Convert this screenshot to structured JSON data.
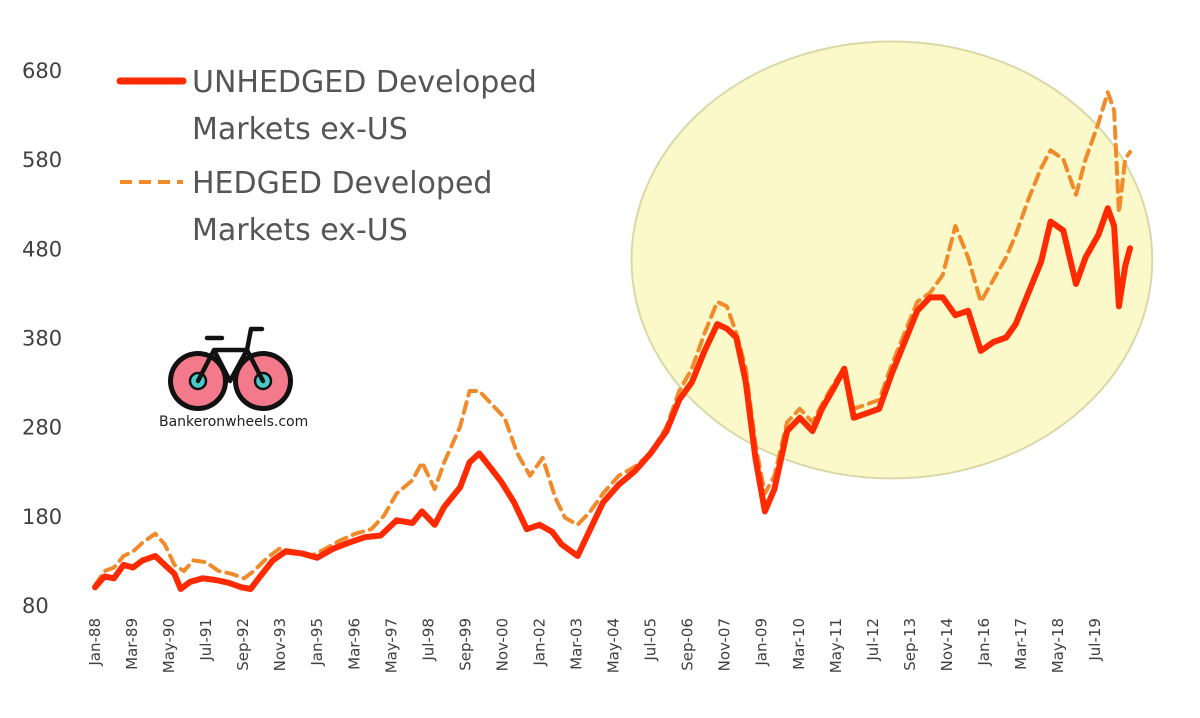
{
  "chart_data": {
    "type": "line",
    "ylim": [
      80,
      680
    ],
    "yticks": [
      80,
      180,
      280,
      380,
      480,
      580,
      680
    ],
    "xlim": [
      1988.0,
      2020.6
    ],
    "x_tick_labels": [
      "Jan-88",
      "Mar-89",
      "May-90",
      "Jul-91",
      "Sep-92",
      "Nov-93",
      "Jan-95",
      "Mar-96",
      "May-97",
      "Jul-98",
      "Sep-99",
      "Nov-00",
      "Jan-02",
      "Mar-03",
      "May-04",
      "Jul-05",
      "Sep-06",
      "Nov-07",
      "Jan-09",
      "Mar-10",
      "May-11",
      "Jul-12",
      "Sep-13",
      "Nov-14",
      "Jan-16",
      "Mar-17",
      "May-18",
      "Jul-19"
    ],
    "legend_position": "top-left",
    "grid": false,
    "series": [
      {
        "name": "UNHEDGED Developed Markets ex-US",
        "legend_lines": [
          "UNHEDGED Developed",
          "Markets ex-US"
        ],
        "color": "#ff2a00",
        "style": "solid",
        "points": [
          [
            1988.0,
            100
          ],
          [
            1988.3,
            112
          ],
          [
            1988.6,
            110
          ],
          [
            1988.9,
            125
          ],
          [
            1989.2,
            122
          ],
          [
            1989.5,
            130
          ],
          [
            1989.9,
            135
          ],
          [
            1990.2,
            125
          ],
          [
            1990.5,
            115
          ],
          [
            1990.7,
            98
          ],
          [
            1991.0,
            106
          ],
          [
            1991.4,
            110
          ],
          [
            1991.8,
            108
          ],
          [
            1992.2,
            105
          ],
          [
            1992.6,
            100
          ],
          [
            1992.9,
            98
          ],
          [
            1993.2,
            112
          ],
          [
            1993.6,
            130
          ],
          [
            1994.0,
            140
          ],
          [
            1994.5,
            138
          ],
          [
            1995.0,
            133
          ],
          [
            1995.5,
            143
          ],
          [
            1996.0,
            150
          ],
          [
            1996.5,
            156
          ],
          [
            1997.0,
            158
          ],
          [
            1997.5,
            175
          ],
          [
            1998.0,
            172
          ],
          [
            1998.3,
            185
          ],
          [
            1998.7,
            170
          ],
          [
            1999.0,
            190
          ],
          [
            1999.5,
            212
          ],
          [
            1999.8,
            240
          ],
          [
            2000.1,
            250
          ],
          [
            2000.5,
            232
          ],
          [
            2000.8,
            218
          ],
          [
            2001.2,
            195
          ],
          [
            2001.6,
            165
          ],
          [
            2002.0,
            170
          ],
          [
            2002.4,
            162
          ],
          [
            2002.7,
            148
          ],
          [
            2003.2,
            135
          ],
          [
            2003.6,
            165
          ],
          [
            2004.0,
            195
          ],
          [
            2004.5,
            215
          ],
          [
            2005.0,
            230
          ],
          [
            2005.5,
            250
          ],
          [
            2006.0,
            275
          ],
          [
            2006.4,
            310
          ],
          [
            2006.8,
            330
          ],
          [
            2007.2,
            365
          ],
          [
            2007.6,
            395
          ],
          [
            2007.9,
            390
          ],
          [
            2008.2,
            380
          ],
          [
            2008.5,
            330
          ],
          [
            2008.8,
            245
          ],
          [
            2009.1,
            185
          ],
          [
            2009.4,
            210
          ],
          [
            2009.8,
            275
          ],
          [
            2010.2,
            290
          ],
          [
            2010.6,
            275
          ],
          [
            2010.9,
            300
          ],
          [
            2011.3,
            325
          ],
          [
            2011.6,
            345
          ],
          [
            2011.9,
            290
          ],
          [
            2012.3,
            295
          ],
          [
            2012.7,
            300
          ],
          [
            2013.1,
            340
          ],
          [
            2013.5,
            375
          ],
          [
            2013.9,
            410
          ],
          [
            2014.3,
            425
          ],
          [
            2014.7,
            425
          ],
          [
            2015.1,
            405
          ],
          [
            2015.5,
            410
          ],
          [
            2015.9,
            365
          ],
          [
            2016.3,
            375
          ],
          [
            2016.7,
            380
          ],
          [
            2017.0,
            395
          ],
          [
            2017.4,
            430
          ],
          [
            2017.8,
            465
          ],
          [
            2018.1,
            510
          ],
          [
            2018.5,
            500
          ],
          [
            2018.9,
            440
          ],
          [
            2019.2,
            470
          ],
          [
            2019.6,
            495
          ],
          [
            2019.9,
            525
          ],
          [
            2020.1,
            505
          ],
          [
            2020.25,
            415
          ],
          [
            2020.45,
            460
          ],
          [
            2020.6,
            480
          ]
        ]
      },
      {
        "name": "HEDGED Developed Markets ex-US",
        "legend_lines": [
          "HEDGED Developed",
          "Markets ex-US"
        ],
        "color": "#f08a2a",
        "style": "dashed",
        "points": [
          [
            1988.0,
            102
          ],
          [
            1988.3,
            118
          ],
          [
            1988.6,
            122
          ],
          [
            1988.9,
            135
          ],
          [
            1989.2,
            140
          ],
          [
            1989.5,
            150
          ],
          [
            1989.9,
            160
          ],
          [
            1990.2,
            148
          ],
          [
            1990.5,
            125
          ],
          [
            1990.8,
            118
          ],
          [
            1991.1,
            130
          ],
          [
            1991.5,
            128
          ],
          [
            1991.9,
            118
          ],
          [
            1992.3,
            115
          ],
          [
            1992.7,
            110
          ],
          [
            1993.0,
            118
          ],
          [
            1993.4,
            132
          ],
          [
            1993.8,
            143
          ],
          [
            1994.3,
            140
          ],
          [
            1994.8,
            135
          ],
          [
            1995.2,
            142
          ],
          [
            1995.7,
            152
          ],
          [
            1996.2,
            160
          ],
          [
            1996.7,
            165
          ],
          [
            1997.1,
            180
          ],
          [
            1997.5,
            205
          ],
          [
            1998.0,
            220
          ],
          [
            1998.3,
            240
          ],
          [
            1998.7,
            210
          ],
          [
            1999.0,
            240
          ],
          [
            1999.5,
            280
          ],
          [
            1999.8,
            320
          ],
          [
            2000.1,
            320
          ],
          [
            2000.5,
            305
          ],
          [
            2000.9,
            290
          ],
          [
            2001.3,
            250
          ],
          [
            2001.7,
            225
          ],
          [
            2002.1,
            245
          ],
          [
            2002.5,
            200
          ],
          [
            2002.8,
            178
          ],
          [
            2003.2,
            170
          ],
          [
            2003.6,
            185
          ],
          [
            2004.0,
            205
          ],
          [
            2004.5,
            225
          ],
          [
            2005.0,
            235
          ],
          [
            2005.5,
            250
          ],
          [
            2006.0,
            280
          ],
          [
            2006.4,
            320
          ],
          [
            2006.8,
            345
          ],
          [
            2007.2,
            385
          ],
          [
            2007.6,
            420
          ],
          [
            2007.9,
            415
          ],
          [
            2008.2,
            385
          ],
          [
            2008.5,
            345
          ],
          [
            2008.8,
            260
          ],
          [
            2009.1,
            205
          ],
          [
            2009.4,
            225
          ],
          [
            2009.8,
            285
          ],
          [
            2010.2,
            300
          ],
          [
            2010.6,
            285
          ],
          [
            2010.9,
            305
          ],
          [
            2011.3,
            330
          ],
          [
            2011.6,
            345
          ],
          [
            2011.9,
            300
          ],
          [
            2012.3,
            305
          ],
          [
            2012.7,
            310
          ],
          [
            2013.1,
            350
          ],
          [
            2013.5,
            385
          ],
          [
            2013.9,
            420
          ],
          [
            2014.3,
            430
          ],
          [
            2014.7,
            450
          ],
          [
            2015.1,
            505
          ],
          [
            2015.5,
            470
          ],
          [
            2015.9,
            420
          ],
          [
            2016.3,
            445
          ],
          [
            2016.7,
            470
          ],
          [
            2017.0,
            495
          ],
          [
            2017.4,
            535
          ],
          [
            2017.8,
            570
          ],
          [
            2018.1,
            590
          ],
          [
            2018.5,
            580
          ],
          [
            2018.9,
            540
          ],
          [
            2019.2,
            580
          ],
          [
            2019.6,
            620
          ],
          [
            2019.9,
            655
          ],
          [
            2020.1,
            635
          ],
          [
            2020.25,
            520
          ],
          [
            2020.45,
            580
          ],
          [
            2020.6,
            588
          ]
        ]
      }
    ]
  },
  "highlight": {
    "shape": "ellipse",
    "fill": "#fbf8c9",
    "stroke": "#d9d9a8",
    "x_range": [
      2004.9,
      2021.3
    ],
    "y_range": [
      222,
      712
    ]
  },
  "logo": {
    "text": "Bankeronwheels.com",
    "wheel_color": "#f27a8a",
    "hub_color": "#49c9c9",
    "frame_color": "#111111"
  }
}
